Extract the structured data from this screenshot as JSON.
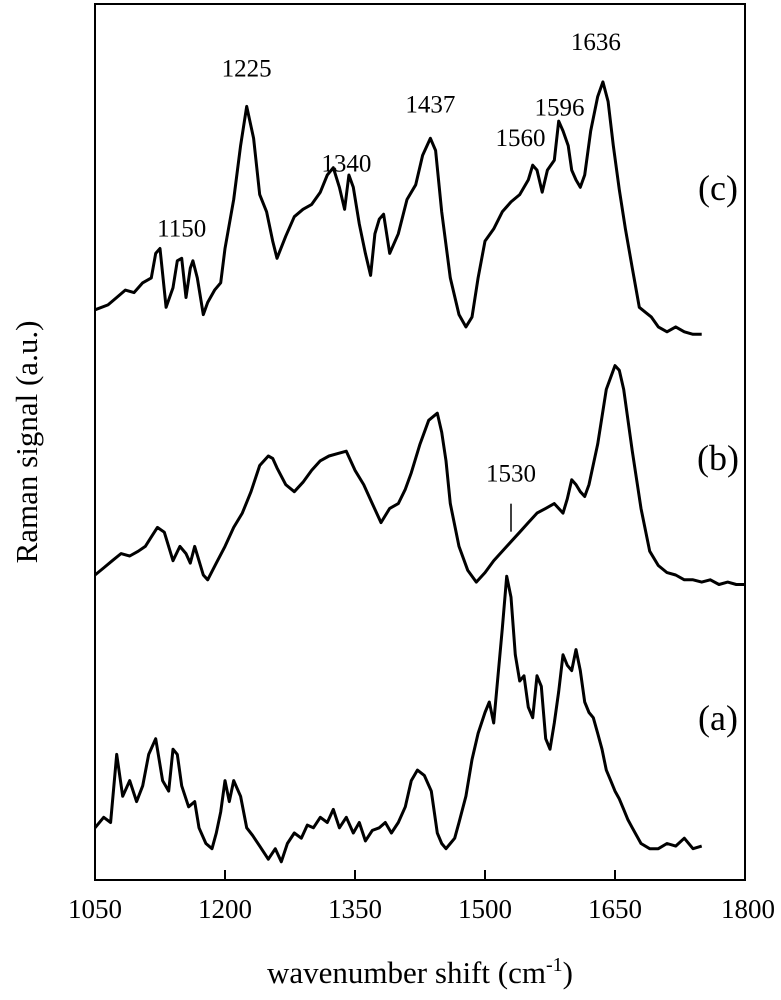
{
  "chart_data": {
    "type": "line",
    "xlabel": "wavenumber shift (cm",
    "xlabel_superscript": "-1",
    "xlabel_close": ")",
    "ylabel": "Raman signal (a.u.)",
    "xlim": [
      1050,
      1800
    ],
    "xticks": [
      1050,
      1200,
      1350,
      1500,
      1650,
      1800
    ],
    "yticks_shown": false,
    "grid": false,
    "series": [
      {
        "label": "(c)",
        "x": [
          1050,
          1065,
          1075,
          1085,
          1095,
          1105,
          1115,
          1120,
          1125,
          1132,
          1140,
          1145,
          1150,
          1155,
          1160,
          1163,
          1168,
          1175,
          1180,
          1188,
          1195,
          1200,
          1210,
          1218,
          1225,
          1233,
          1240,
          1248,
          1255,
          1260,
          1270,
          1280,
          1290,
          1300,
          1310,
          1318,
          1325,
          1332,
          1338,
          1343,
          1348,
          1355,
          1362,
          1368,
          1373,
          1378,
          1383,
          1390,
          1400,
          1410,
          1420,
          1428,
          1437,
          1443,
          1450,
          1460,
          1470,
          1478,
          1485,
          1492,
          1500,
          1510,
          1520,
          1530,
          1540,
          1550,
          1555,
          1560,
          1566,
          1572,
          1580,
          1585,
          1590,
          1596,
          1600,
          1605,
          1610,
          1615,
          1622,
          1630,
          1636,
          1642,
          1648,
          1655,
          1662,
          1670,
          1678,
          1685,
          1692,
          1700,
          1710,
          1720,
          1730,
          1740,
          1750
        ],
        "y": [
          0.05,
          0.07,
          0.1,
          0.13,
          0.12,
          0.16,
          0.18,
          0.28,
          0.3,
          0.06,
          0.14,
          0.25,
          0.26,
          0.1,
          0.22,
          0.25,
          0.18,
          0.03,
          0.08,
          0.13,
          0.16,
          0.3,
          0.5,
          0.72,
          0.88,
          0.75,
          0.52,
          0.45,
          0.33,
          0.26,
          0.35,
          0.43,
          0.46,
          0.48,
          0.53,
          0.6,
          0.63,
          0.55,
          0.46,
          0.6,
          0.55,
          0.4,
          0.28,
          0.19,
          0.36,
          0.42,
          0.44,
          0.28,
          0.36,
          0.5,
          0.56,
          0.68,
          0.75,
          0.7,
          0.45,
          0.18,
          0.03,
          -0.02,
          0.02,
          0.18,
          0.33,
          0.38,
          0.45,
          0.49,
          0.52,
          0.58,
          0.64,
          0.62,
          0.53,
          0.62,
          0.66,
          0.82,
          0.78,
          0.72,
          0.62,
          0.58,
          0.55,
          0.6,
          0.78,
          0.92,
          0.98,
          0.9,
          0.72,
          0.54,
          0.38,
          0.22,
          0.06,
          0.04,
          0.02,
          -0.02,
          -0.04,
          -0.02,
          -0.04,
          -0.05,
          -0.05
        ]
      },
      {
        "label": "(b)",
        "x": [
          1050,
          1060,
          1070,
          1080,
          1090,
          1100,
          1108,
          1115,
          1122,
          1130,
          1140,
          1148,
          1155,
          1160,
          1165,
          1170,
          1175,
          1180,
          1190,
          1200,
          1210,
          1220,
          1230,
          1240,
          1250,
          1255,
          1260,
          1270,
          1280,
          1290,
          1300,
          1310,
          1320,
          1330,
          1340,
          1350,
          1360,
          1370,
          1380,
          1390,
          1400,
          1408,
          1415,
          1425,
          1435,
          1445,
          1450,
          1455,
          1460,
          1470,
          1480,
          1490,
          1500,
          1510,
          1520,
          1530,
          1540,
          1550,
          1560,
          1570,
          1580,
          1590,
          1595,
          1600,
          1605,
          1610,
          1615,
          1620,
          1630,
          1640,
          1650,
          1655,
          1660,
          1670,
          1680,
          1690,
          1700,
          1710,
          1720,
          1730,
          1740,
          1750,
          1760,
          1770,
          1780,
          1790,
          1800
        ],
        "y": [
          0.0,
          0.03,
          0.06,
          0.09,
          0.08,
          0.1,
          0.12,
          0.16,
          0.2,
          0.18,
          0.06,
          0.12,
          0.09,
          0.05,
          0.12,
          0.06,
          0.0,
          -0.02,
          0.05,
          0.12,
          0.2,
          0.26,
          0.35,
          0.46,
          0.5,
          0.49,
          0.45,
          0.38,
          0.35,
          0.39,
          0.44,
          0.48,
          0.5,
          0.51,
          0.52,
          0.44,
          0.38,
          0.3,
          0.22,
          0.28,
          0.3,
          0.36,
          0.43,
          0.55,
          0.65,
          0.68,
          0.6,
          0.48,
          0.3,
          0.12,
          0.02,
          -0.03,
          0.01,
          0.06,
          0.1,
          0.14,
          0.18,
          0.22,
          0.26,
          0.28,
          0.3,
          0.26,
          0.32,
          0.4,
          0.38,
          0.35,
          0.33,
          0.38,
          0.55,
          0.78,
          0.88,
          0.86,
          0.78,
          0.52,
          0.28,
          0.1,
          0.04,
          0.01,
          0.0,
          -0.02,
          -0.02,
          -0.03,
          -0.02,
          -0.04,
          -0.03,
          -0.04,
          -0.04
        ]
      },
      {
        "label": "(a)",
        "x": [
          1050,
          1060,
          1068,
          1075,
          1082,
          1090,
          1098,
          1105,
          1112,
          1120,
          1128,
          1135,
          1140,
          1145,
          1150,
          1158,
          1165,
          1170,
          1178,
          1185,
          1190,
          1195,
          1200,
          1205,
          1210,
          1218,
          1225,
          1232,
          1240,
          1250,
          1258,
          1265,
          1272,
          1280,
          1288,
          1295,
          1302,
          1310,
          1318,
          1325,
          1332,
          1340,
          1348,
          1355,
          1362,
          1370,
          1378,
          1385,
          1392,
          1400,
          1408,
          1415,
          1422,
          1430,
          1438,
          1445,
          1450,
          1455,
          1460,
          1465,
          1470,
          1478,
          1485,
          1492,
          1500,
          1505,
          1510,
          1515,
          1520,
          1525,
          1530,
          1535,
          1540,
          1545,
          1550,
          1555,
          1560,
          1565,
          1570,
          1575,
          1580,
          1585,
          1590,
          1595,
          1600,
          1605,
          1610,
          1615,
          1620,
          1625,
          1630,
          1635,
          1640,
          1645,
          1650,
          1655,
          1660,
          1665,
          1670,
          1680,
          1690,
          1700,
          1710,
          1720,
          1730,
          1740,
          1750
        ],
        "y": [
          0.02,
          0.06,
          0.04,
          0.3,
          0.14,
          0.2,
          0.12,
          0.18,
          0.3,
          0.36,
          0.2,
          0.16,
          0.32,
          0.3,
          0.18,
          0.1,
          0.12,
          0.02,
          -0.04,
          -0.06,
          0.0,
          0.08,
          0.2,
          0.12,
          0.2,
          0.14,
          0.02,
          -0.01,
          -0.05,
          -0.1,
          -0.06,
          -0.11,
          -0.04,
          0.0,
          -0.02,
          0.03,
          0.02,
          0.06,
          0.04,
          0.09,
          0.02,
          0.06,
          0.0,
          0.04,
          -0.03,
          0.01,
          0.02,
          0.04,
          0.0,
          0.04,
          0.1,
          0.2,
          0.24,
          0.22,
          0.16,
          0.0,
          -0.04,
          -0.06,
          -0.04,
          -0.02,
          0.04,
          0.14,
          0.28,
          0.38,
          0.46,
          0.5,
          0.42,
          0.6,
          0.78,
          0.98,
          0.9,
          0.68,
          0.58,
          0.6,
          0.48,
          0.44,
          0.6,
          0.56,
          0.36,
          0.32,
          0.42,
          0.54,
          0.68,
          0.64,
          0.62,
          0.7,
          0.62,
          0.5,
          0.46,
          0.44,
          0.38,
          0.32,
          0.24,
          0.2,
          0.16,
          0.13,
          0.09,
          0.05,
          0.02,
          -0.04,
          -0.06,
          -0.06,
          -0.04,
          -0.05,
          -0.02,
          -0.06,
          -0.05
        ]
      }
    ],
    "annotations": [
      {
        "series": "(c)",
        "x": 1150,
        "text": "1150"
      },
      {
        "series": "(c)",
        "x": 1225,
        "text": "1225"
      },
      {
        "series": "(c)",
        "x": 1340,
        "text": "1340"
      },
      {
        "series": "(c)",
        "x": 1437,
        "text": "1437"
      },
      {
        "series": "(c)",
        "x": 1560,
        "text": "1560"
      },
      {
        "series": "(c)",
        "x": 1596,
        "text": "1596"
      },
      {
        "series": "(c)",
        "x": 1636,
        "text": "1636"
      },
      {
        "series": "(b)",
        "x": 1530,
        "text": "1530",
        "marker": "vertical-line"
      }
    ]
  }
}
